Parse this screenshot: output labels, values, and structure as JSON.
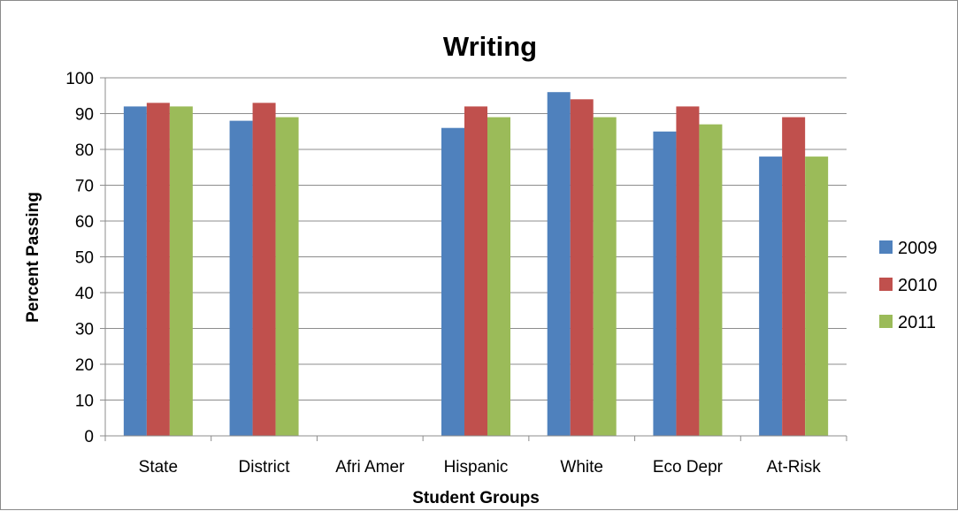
{
  "chart_data": {
    "type": "bar",
    "title": "Writing",
    "xlabel": "Student Groups",
    "ylabel": "Percent Passing",
    "categories": [
      "State",
      "District",
      "Afri Amer",
      "Hispanic",
      "White",
      "Eco Depr",
      "At-Risk"
    ],
    "series": [
      {
        "name": "2009",
        "color": "#4f81bd",
        "values": [
          92,
          88,
          null,
          86,
          96,
          85,
          78
        ]
      },
      {
        "name": "2010",
        "color": "#c0504d",
        "values": [
          93,
          93,
          null,
          92,
          94,
          92,
          89
        ]
      },
      {
        "name": "2011",
        "color": "#9bbb59",
        "values": [
          92,
          89,
          null,
          89,
          89,
          87,
          78
        ]
      }
    ],
    "ylim": [
      0,
      100
    ],
    "yticks": [
      0,
      10,
      20,
      30,
      40,
      50,
      60,
      70,
      80,
      90,
      100
    ],
    "grid": true,
    "legend_position": "right"
  }
}
